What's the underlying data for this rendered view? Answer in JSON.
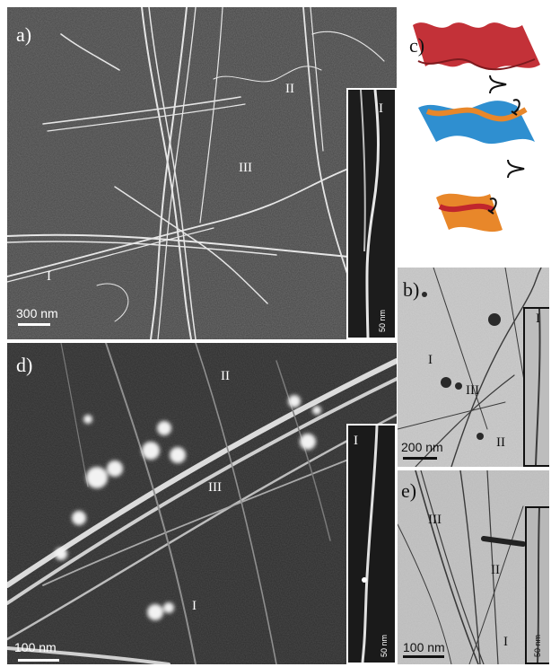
{
  "figure": {
    "panel_a": {
      "label": "a)",
      "scale_bar": "300 nm",
      "markers": [
        "I",
        "II",
        "III"
      ],
      "inset": {
        "marker": "I",
        "scale_bar": "50 nm"
      }
    },
    "panel_b": {
      "label": "b)",
      "scale_bar": "200 nm",
      "markers": [
        "I",
        "II",
        "III"
      ],
      "inset": {
        "marker": "I"
      }
    },
    "panel_c": {
      "label": "c)"
    },
    "panel_d": {
      "label": "d)",
      "scale_bar": "100 nm",
      "markers": [
        "I",
        "II",
        "III"
      ],
      "inset": {
        "marker": "I",
        "scale_bar": "50 nm"
      }
    },
    "panel_e": {
      "label": "e)",
      "scale_bar": "100 nm",
      "markers": [
        "I",
        "II",
        "III"
      ],
      "inset": {
        "scale_bar": "50 nm"
      }
    }
  },
  "colors": {
    "sem_background": "#4a4a4a",
    "tem_background": "#c9c9c9",
    "fibril_light": "#e8e8e8",
    "fibril_dark": "#3a3a3a",
    "ribbon_red": "#c0262d",
    "ribbon_blue": "#2f8fd0",
    "ribbon_orange": "#e8872a"
  }
}
